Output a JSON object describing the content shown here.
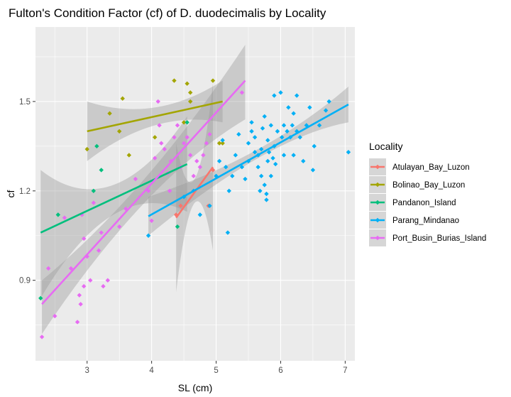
{
  "chart_data": {
    "type": "scatter",
    "title": "Fulton's Condition Factor (cf) of D. duodecimalis by Locality",
    "xlabel": "SL (cm)",
    "ylabel": "cf",
    "xlim": [
      2.2,
      7.15
    ],
    "ylim": [
      0.63,
      1.75
    ],
    "x_ticks": [
      {
        "value": 3,
        "label": "3"
      },
      {
        "value": 4,
        "label": "4"
      },
      {
        "value": 5,
        "label": "5"
      },
      {
        "value": 6,
        "label": "6"
      },
      {
        "value": 7,
        "label": "7"
      }
    ],
    "y_ticks": [
      {
        "value": 0.9,
        "label": "0.9"
      },
      {
        "value": 1.2,
        "label": "1.2"
      },
      {
        "value": 1.5,
        "label": "1.5"
      }
    ],
    "grid": true,
    "legend": {
      "title": "Locality",
      "position": "right"
    },
    "series": [
      {
        "name": "Atulayan_Bay_Luzon",
        "color": "#f8766d",
        "points": [
          [
            4.38,
            1.12
          ],
          [
            4.45,
            1.15
          ],
          [
            4.88,
            1.15
          ],
          [
            4.95,
            1.27
          ]
        ],
        "fit": {
          "x0": 4.38,
          "x1": 4.95,
          "y0": 1.11,
          "y1": 1.28
        },
        "band": {
          "xs": [
            4.38,
            4.67,
            4.95
          ],
          "lo": [
            0.86,
            1.16,
            1.0
          ],
          "hi": [
            1.36,
            1.24,
            1.56
          ]
        }
      },
      {
        "name": "Bolinao_Bay_Luzon",
        "color": "#a3a500",
        "points": [
          [
            3.0,
            1.34
          ],
          [
            3.35,
            1.46
          ],
          [
            3.5,
            1.4
          ],
          [
            3.55,
            1.51
          ],
          [
            3.65,
            1.32
          ],
          [
            4.05,
            1.38
          ],
          [
            4.35,
            1.57
          ],
          [
            4.5,
            1.43
          ],
          [
            4.55,
            1.56
          ],
          [
            4.6,
            1.53
          ],
          [
            4.6,
            1.5
          ],
          [
            4.95,
            1.57
          ],
          [
            5.05,
            1.36
          ],
          [
            5.1,
            1.36
          ]
        ],
        "fit": {
          "x0": 3.0,
          "x1": 5.1,
          "y0": 1.4,
          "y1": 1.5
        },
        "band": {
          "xs": [
            3.0,
            4.05,
            5.1
          ],
          "lo": [
            1.3,
            1.42,
            1.43
          ],
          "hi": [
            1.5,
            1.48,
            1.57
          ]
        }
      },
      {
        "name": "Pandanon_Island",
        "color": "#00bf7d",
        "points": [
          [
            2.28,
            0.84
          ],
          [
            2.55,
            1.12
          ],
          [
            3.1,
            1.2
          ],
          [
            3.15,
            1.35
          ],
          [
            3.22,
            1.27
          ],
          [
            4.4,
            1.08
          ],
          [
            4.55,
            1.43
          ]
        ],
        "fit": {
          "x0": 2.28,
          "x1": 4.55,
          "y0": 1.06,
          "y1": 1.29
        },
        "band": {
          "xs": [
            2.28,
            3.4,
            4.55
          ],
          "lo": [
            0.84,
            1.12,
            1.13
          ],
          "hi": [
            1.27,
            1.22,
            1.45
          ]
        }
      },
      {
        "name": "Parang_Mindanao",
        "color": "#00b0f6",
        "points": [
          [
            3.95,
            1.05
          ],
          [
            4.5,
            1.18
          ],
          [
            4.65,
            1.2
          ],
          [
            4.75,
            1.12
          ],
          [
            4.9,
            1.15
          ],
          [
            5.0,
            1.25
          ],
          [
            5.05,
            1.3
          ],
          [
            5.1,
            1.37
          ],
          [
            5.15,
            1.28
          ],
          [
            5.18,
            1.06
          ],
          [
            5.2,
            1.2
          ],
          [
            5.25,
            1.25
          ],
          [
            5.3,
            1.32
          ],
          [
            5.35,
            1.39
          ],
          [
            5.4,
            1.28
          ],
          [
            5.45,
            1.24
          ],
          [
            5.5,
            1.3
          ],
          [
            5.5,
            1.36
          ],
          [
            5.55,
            1.4
          ],
          [
            5.55,
            1.43
          ],
          [
            5.6,
            1.33
          ],
          [
            5.6,
            1.38
          ],
          [
            5.65,
            1.32
          ],
          [
            5.65,
            1.28
          ],
          [
            5.68,
            1.2
          ],
          [
            5.7,
            1.25
          ],
          [
            5.7,
            1.34
          ],
          [
            5.72,
            1.41
          ],
          [
            5.75,
            1.45
          ],
          [
            5.75,
            1.22
          ],
          [
            5.78,
            1.19
          ],
          [
            5.78,
            1.17
          ],
          [
            5.8,
            1.3
          ],
          [
            5.8,
            1.37
          ],
          [
            5.82,
            1.33
          ],
          [
            5.85,
            1.42
          ],
          [
            5.85,
            1.25
          ],
          [
            5.88,
            1.31
          ],
          [
            5.9,
            1.35
          ],
          [
            5.9,
            1.52
          ],
          [
            5.92,
            1.29
          ],
          [
            5.95,
            1.4
          ],
          [
            6.0,
            1.53
          ],
          [
            6.02,
            1.38
          ],
          [
            6.05,
            1.42
          ],
          [
            6.05,
            1.32
          ],
          [
            6.1,
            1.4
          ],
          [
            6.12,
            1.48
          ],
          [
            6.15,
            1.38
          ],
          [
            6.18,
            1.42
          ],
          [
            6.2,
            1.46
          ],
          [
            6.2,
            1.32
          ],
          [
            6.25,
            1.52
          ],
          [
            6.25,
            1.4
          ],
          [
            6.3,
            1.38
          ],
          [
            6.35,
            1.3
          ],
          [
            6.4,
            1.42
          ],
          [
            6.45,
            1.48
          ],
          [
            6.5,
            1.27
          ],
          [
            6.52,
            1.35
          ],
          [
            6.6,
            1.42
          ],
          [
            6.7,
            1.47
          ],
          [
            6.75,
            1.5
          ],
          [
            7.05,
            1.33
          ]
        ],
        "fit": {
          "x0": 3.95,
          "x1": 7.05,
          "y0": 1.115,
          "y1": 1.49
        },
        "band": {
          "xs": [
            3.95,
            5.8,
            7.05
          ],
          "lo": [
            1.05,
            1.31,
            1.43
          ],
          "hi": [
            1.18,
            1.34,
            1.55
          ]
        }
      },
      {
        "name": "Port_Busin_Burias_Island",
        "color": "#e76bf3",
        "points": [
          [
            2.3,
            0.71
          ],
          [
            2.4,
            0.94
          ],
          [
            2.5,
            0.78
          ],
          [
            2.65,
            1.11
          ],
          [
            2.75,
            0.94
          ],
          [
            2.85,
            0.76
          ],
          [
            2.88,
            0.85
          ],
          [
            2.9,
            0.82
          ],
          [
            2.92,
            1.12
          ],
          [
            2.95,
            1.04
          ],
          [
            2.95,
            0.88
          ],
          [
            3.0,
            0.98
          ],
          [
            3.05,
            0.9
          ],
          [
            3.1,
            1.16
          ],
          [
            3.18,
            1.0
          ],
          [
            3.22,
            1.06
          ],
          [
            3.25,
            0.88
          ],
          [
            3.32,
            0.9
          ],
          [
            3.5,
            1.08
          ],
          [
            3.6,
            1.14
          ],
          [
            3.75,
            1.24
          ],
          [
            3.95,
            1.2
          ],
          [
            4.0,
            1.1
          ],
          [
            4.05,
            1.31
          ],
          [
            4.1,
            1.5
          ],
          [
            4.12,
            1.42
          ],
          [
            4.15,
            1.36
          ],
          [
            4.2,
            1.34
          ],
          [
            4.25,
            1.26
          ],
          [
            4.28,
            1.2
          ],
          [
            4.3,
            1.3
          ],
          [
            4.35,
            1.38
          ],
          [
            4.4,
            1.42
          ],
          [
            4.45,
            1.28
          ],
          [
            4.5,
            1.36
          ],
          [
            4.55,
            1.38
          ],
          [
            4.6,
            1.32
          ],
          [
            4.65,
            1.25
          ],
          [
            4.7,
            1.3
          ],
          [
            4.75,
            1.28
          ],
          [
            4.8,
            1.32
          ],
          [
            4.85,
            1.36
          ],
          [
            4.9,
            1.39
          ],
          [
            5.4,
            1.53
          ]
        ],
        "fit": {
          "x0": 2.3,
          "x1": 5.45,
          "y0": 0.82,
          "y1": 1.57
        },
        "band": {
          "xs": [
            2.3,
            3.9,
            5.45
          ],
          "lo": [
            0.72,
            1.16,
            1.44
          ],
          "hi": [
            0.9,
            1.24,
            1.69
          ]
        }
      }
    ]
  }
}
